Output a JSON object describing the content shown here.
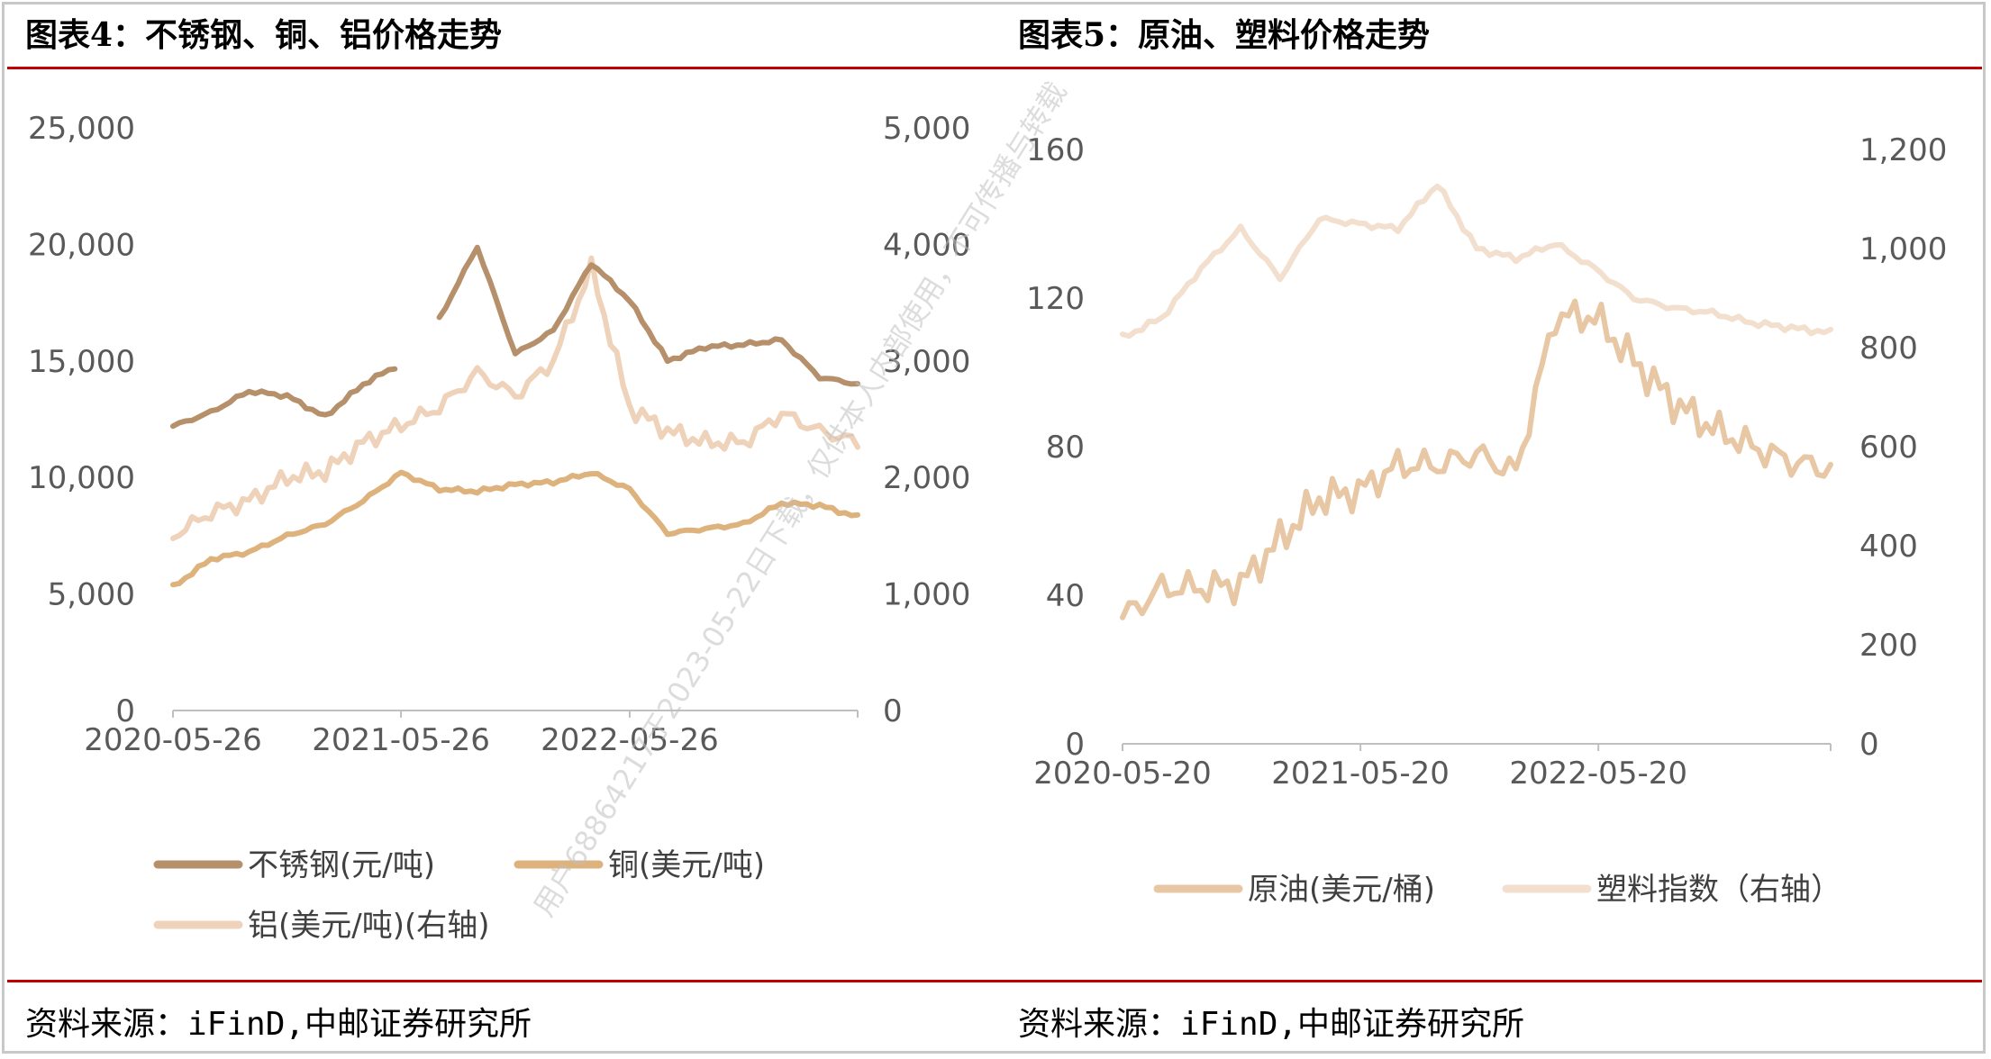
{
  "left_title": "图表4：不锈钢、铜、铝价格走势",
  "right_title": "图表5：原油、塑料价格走势",
  "left_source": "资料来源：iFinD,中邮证券研究所",
  "right_source": "资料来源：iFinD,中邮证券研究所",
  "watermark": "用户68864217于2023-05-22日下载，仅供本人内部使用，不可传播与转载",
  "colors": {
    "stainless": "#b5906a",
    "copper": "#ddb27c",
    "aluminum": "#efd2ba",
    "oil": "#e8c7a5",
    "plastic": "#f2dfce",
    "rule": "#c00000"
  },
  "chart_data": [
    {
      "type": "line",
      "x_ticks": [
        "2020-05-26",
        "2021-05-26",
        "2022-05-26"
      ],
      "y_left_ticks": [
        "0",
        "5,000",
        "10,000",
        "15,000",
        "20,000",
        "25,000"
      ],
      "y_right_ticks": [
        "0",
        "1,000",
        "2,000",
        "3,000",
        "4,000",
        "5,000"
      ],
      "ylim_left": [
        0,
        25000
      ],
      "ylim_right": [
        0,
        5000
      ],
      "x": [
        "2020-05",
        "2020-07",
        "2020-09",
        "2020-11",
        "2021-01",
        "2021-03",
        "2021-05",
        "2021-07",
        "2021-09",
        "2021-11",
        "2022-01",
        "2022-03",
        "2022-05",
        "2022-07",
        "2022-09",
        "2022-11",
        "2023-01",
        "2023-03",
        "2023-05"
      ],
      "series": [
        {
          "name": "不锈钢(元/吨)",
          "axis": "left",
          "values": [
            12200,
            12800,
            13700,
            13500,
            12600,
            14000,
            14900,
            16800,
            19900,
            15300,
            16300,
            19200,
            17600,
            15000,
            15600,
            15700,
            15900,
            14300,
            14000
          ]
        },
        {
          "name": "铜(美元/吨)",
          "axis": "left",
          "values": [
            5300,
            6500,
            6800,
            7500,
            8000,
            9000,
            10200,
            9500,
            9400,
            9700,
            9800,
            10200,
            9500,
            7600,
            7800,
            8000,
            8900,
            8800,
            8300
          ]
        },
        {
          "name": "铝(美元/吨)(右轴)",
          "axis": "right",
          "values": [
            1500,
            1700,
            1800,
            2000,
            2050,
            2300,
            2450,
            2600,
            2900,
            2700,
            3000,
            3800,
            2600,
            2400,
            2300,
            2300,
            2550,
            2400,
            2300
          ]
        }
      ],
      "gaps": {
        "不锈钢(元/吨)": [
          [
            6,
            7
          ]
        ]
      }
    },
    {
      "type": "line",
      "x_ticks": [
        "2020-05-20",
        "2021-05-20",
        "2022-05-20"
      ],
      "y_left_ticks": [
        "0",
        "40",
        "80",
        "120",
        "160"
      ],
      "y_right_ticks": [
        "0",
        "200",
        "400",
        "600",
        "800",
        "1,000",
        "1,200"
      ],
      "ylim_left": [
        0,
        160
      ],
      "ylim_right": [
        0,
        1200
      ],
      "x": [
        "2020-05",
        "2020-07",
        "2020-09",
        "2020-11",
        "2021-01",
        "2021-03",
        "2021-05",
        "2021-07",
        "2021-09",
        "2021-11",
        "2022-01",
        "2022-03",
        "2022-05",
        "2022-07",
        "2022-09",
        "2022-11",
        "2023-01",
        "2023-03",
        "2023-05"
      ],
      "series": [
        {
          "name": "原油(美元/桶)",
          "axis": "left",
          "values": [
            34,
            42,
            42,
            43,
            55,
            66,
            68,
            75,
            75,
            78,
            73,
            115,
            115,
            103,
            92,
            85,
            80,
            76,
            74
          ]
        },
        {
          "name": "塑料指数（右轴）",
          "axis": "right",
          "values": [
            820,
            860,
            960,
            1040,
            940,
            1060,
            1050,
            1040,
            1130,
            1000,
            980,
            1010,
            960,
            900,
            880,
            870,
            850,
            840,
            830
          ]
        }
      ]
    }
  ]
}
